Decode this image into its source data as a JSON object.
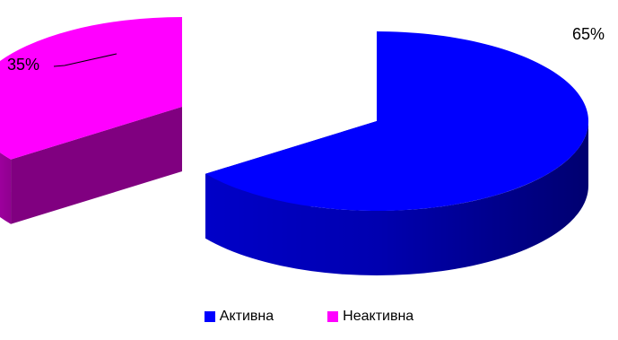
{
  "colors": {
    "active": "#0000FF",
    "inactive": "#FF00FF"
  },
  "chart_data": {
    "type": "pie",
    "variant": "3d-exploded",
    "categories": [
      "Активна",
      "Неактивна"
    ],
    "values": [
      65,
      35
    ],
    "labels": [
      "65%",
      "35%"
    ],
    "legend_position": "bottom"
  },
  "legend": {
    "items": [
      {
        "label": "Активна",
        "color": "#0000FF"
      },
      {
        "label": "Неактивна",
        "color": "#FF00FF"
      }
    ]
  }
}
